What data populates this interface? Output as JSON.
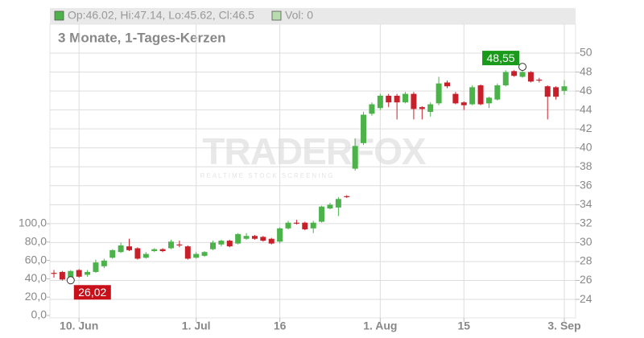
{
  "chart_data": {
    "type": "candlestick",
    "legend": [
      "Op:46.02, Hi:47.14, Lo:45.62, Cl:46.5",
      "Vol: 0"
    ],
    "legend_colors": [
      "#4cb34a",
      "#b8dcb0"
    ],
    "subtitle": "3 Monate, 1-Tages-Kerzen",
    "watermark": [
      "TRADERFOX",
      "REALTIME STOCK SCREENING"
    ],
    "up_color": "#4cb34a",
    "down_color": "#c8202a",
    "categories": [
      null,
      null,
      null,
      "10. Jun",
      null,
      null,
      null,
      null,
      null,
      null,
      null,
      null,
      null,
      null,
      null,
      null,
      null,
      "1. Jul",
      null,
      null,
      null,
      null,
      null,
      null,
      null,
      null,
      null,
      "16",
      null,
      null,
      null,
      null,
      null,
      null,
      null,
      null,
      null,
      null,
      null,
      "1. Aug",
      null,
      null,
      null,
      null,
      null,
      null,
      null,
      null,
      null,
      "15",
      null,
      null,
      null,
      null,
      null,
      null,
      null,
      null,
      null,
      null,
      null,
      "3. Sep"
    ],
    "open": [
      26.8,
      26.9,
      26.1,
      27.1,
      26.6,
      26.9,
      27.5,
      28.4,
      29.0,
      29.6,
      29.4,
      28.4,
      29.1,
      29.3,
      29.4,
      29.8,
      29.6,
      28.4,
      28.6,
      29.3,
      29.8,
      30.2,
      29.9,
      30.4,
      30.7,
      30.6,
      30.4,
      30.1,
      31.5,
      32.1,
      32.1,
      31.5,
      32.2,
      33.6,
      33.7,
      34.9,
      37.8,
      40.5,
      43.6,
      44.2,
      45.5,
      45.5,
      44.8,
      45.7,
      44.3,
      43.8,
      44.7,
      46.9,
      45.7,
      44.8,
      44.6,
      46.6,
      44.7,
      45.1,
      46.6,
      48.1,
      47.5,
      48.0,
      47.2,
      46.5,
      46.4,
      46.02
    ],
    "high": [
      27.1,
      27.0,
      27.1,
      27.2,
      27.1,
      28.2,
      28.3,
      29.3,
      30.0,
      30.4,
      29.5,
      29.0,
      29.4,
      29.4,
      30.3,
      30.2,
      29.7,
      29.0,
      29.1,
      30.2,
      30.3,
      30.3,
      31.0,
      31.0,
      30.8,
      30.7,
      30.5,
      31.6,
      32.3,
      32.4,
      32.2,
      32.3,
      33.9,
      34.2,
      34.8,
      35.0,
      41.0,
      43.8,
      44.8,
      45.7,
      45.7,
      45.7,
      45.9,
      45.9,
      44.4,
      44.8,
      47.5,
      47.1,
      45.9,
      44.9,
      46.6,
      46.7,
      45.4,
      46.8,
      48.2,
      48.2,
      48.55,
      48.1,
      47.4,
      46.6,
      46.5,
      47.14
    ],
    "low": [
      26.3,
      26.0,
      26.02,
      26.3,
      26.4,
      26.8,
      27.3,
      28.3,
      28.9,
      29.1,
      28.2,
      28.3,
      29.0,
      29.0,
      29.3,
      29.5,
      28.2,
      28.3,
      28.5,
      29.2,
      29.6,
      29.5,
      29.8,
      30.3,
      30.3,
      30.1,
      29.8,
      29.9,
      31.4,
      31.9,
      31.3,
      31.0,
      32.1,
      33.5,
      32.8,
      34.7,
      37.6,
      40.3,
      43.4,
      44.0,
      44.3,
      43.0,
      44.7,
      43.0,
      43.0,
      43.3,
      44.5,
      46.3,
      44.6,
      44.0,
      44.5,
      44.5,
      44.2,
      45.0,
      46.5,
      47.5,
      47.4,
      46.9,
      46.9,
      43.0,
      45.1,
      45.62
    ],
    "close": [
      26.7,
      26.1,
      27.0,
      26.4,
      26.9,
      27.9,
      28.1,
      29.2,
      29.7,
      29.2,
      28.3,
      28.8,
      29.3,
      29.1,
      30.1,
      29.7,
      28.3,
      28.8,
      29.0,
      30.0,
      30.2,
      29.6,
      30.9,
      30.7,
      30.4,
      30.2,
      29.9,
      31.5,
      32.1,
      32.0,
      31.4,
      32.1,
      33.8,
      34.0,
      34.6,
      34.8,
      40.2,
      43.5,
      44.6,
      45.5,
      44.8,
      44.8,
      45.7,
      44.1,
      44.1,
      44.6,
      46.8,
      46.5,
      44.7,
      44.5,
      46.4,
      44.6,
      45.3,
      46.6,
      48.0,
      47.6,
      48.0,
      47.0,
      47.1,
      45.4,
      45.4,
      46.5
    ],
    "annotations": [
      {
        "text": "48,55",
        "value": 48.55,
        "color": "#1a9a1a"
      },
      {
        "text": "26,02",
        "value": 26.02,
        "color": "#c8101a"
      }
    ],
    "ylim": [
      22.05,
      53.06
    ],
    "yticks": [
      24,
      26,
      28,
      30,
      32,
      34,
      36,
      38,
      40,
      42,
      44,
      46,
      48,
      50
    ],
    "y2lim": [
      0,
      100
    ],
    "y2ticks": [
      {
        "value": 0,
        "label": "0,0"
      },
      {
        "value": 20,
        "label": "20,0"
      },
      {
        "value": 40,
        "label": "40,0"
      },
      {
        "value": 60,
        "label": "60,0"
      },
      {
        "value": 80,
        "label": "80,0"
      },
      {
        "value": 100,
        "label": "100,0"
      }
    ],
    "grid": true
  }
}
